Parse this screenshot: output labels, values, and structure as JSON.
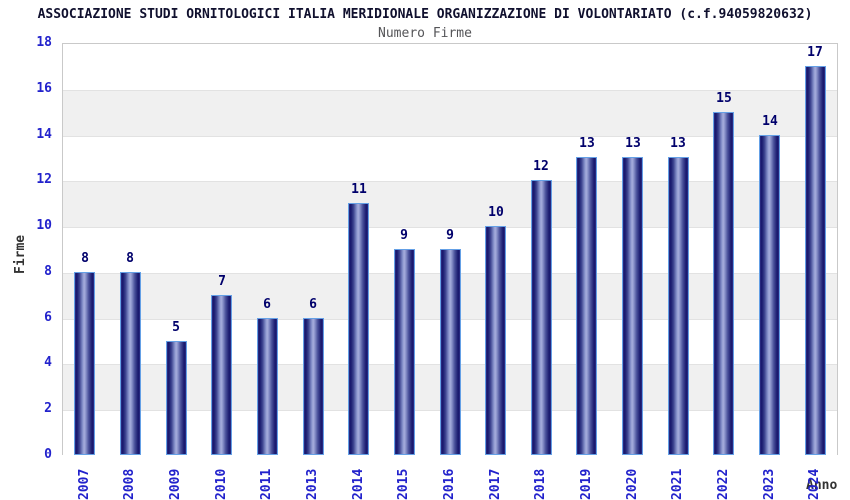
{
  "chart": {
    "title": "ASSOCIAZIONE STUDI ORNITOLOGICI ITALIA MERIDIONALE ORGANIZZAZIONE DI VOLONTARIATO (c.f.94059820632)",
    "subtitle": "Numero Firme"
  },
  "chart_data": {
    "type": "bar",
    "title": "ASSOCIAZIONE STUDI ORNITOLOGICI ITALIA MERIDIONALE ORGANIZZAZIONE DI VOLONTARIATO (c.f.94059820632)",
    "subtitle": "Numero Firme",
    "categories": [
      "2007",
      "2008",
      "2009",
      "2010",
      "2011",
      "2013",
      "2014",
      "2015",
      "2016",
      "2017",
      "2018",
      "2019",
      "2020",
      "2021",
      "2022",
      "2023",
      "2024"
    ],
    "values": [
      8,
      8,
      5,
      7,
      6,
      6,
      11,
      9,
      9,
      10,
      12,
      13,
      13,
      13,
      15,
      14,
      17
    ],
    "xlabel": "Anno",
    "ylabel": "Firme",
    "ylim": [
      0,
      18
    ],
    "ytick_step": 2,
    "grid": "horizontal-alternating-bands",
    "legend": "none",
    "colors": {
      "bar_dark": "#16166b",
      "bar_light": "#a7aedd",
      "bar_border": "#64a0e6",
      "axis_tick_label": "#2222cc",
      "value_label": "#00006b",
      "band_gray": "#f0f0f0",
      "band_white": "#ffffff",
      "plot_border": "#c9c9c9",
      "title_color": "#10102e",
      "subtitle_color": "#555558",
      "axis_title_color": "#333333"
    }
  }
}
